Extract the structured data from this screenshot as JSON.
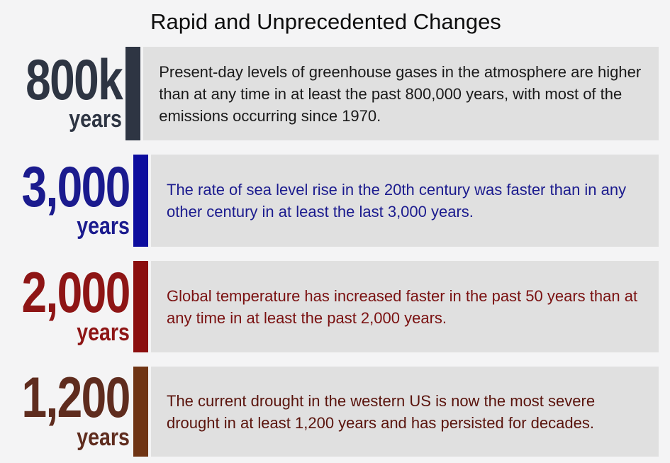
{
  "title": "Rapid and Unprecedented Changes",
  "background": "#f4f4f5",
  "box_background": "#e0e0e0",
  "rows": [
    {
      "value": "800k",
      "unit": "years",
      "number_color": "#2e3543",
      "bar_color": "#2e3543",
      "text_color": "#1a1a1a",
      "text": "Present-day levels of greenhouse gases in the atmosphere are higher than at any time in at least the past 800,000 years, with most of the emissions occurring since 1970."
    },
    {
      "value": "3,000",
      "unit": "years",
      "number_color": "#1b1b8e",
      "bar_color": "#0d0d9e",
      "text_color": "#1b1b8e",
      "text": "The rate of sea level rise in the 20th century was faster than in any other century in at least the last 3,000 years."
    },
    {
      "value": "2,000",
      "unit": "years",
      "number_color": "#8e1515",
      "bar_color": "#8b0e0e",
      "text_color": "#7a1111",
      "text": "Global temperature has increased faster in the past 50 years than at any time in at least the past 2,000 years."
    },
    {
      "value": "1,200",
      "unit": "years",
      "number_color": "#5f2c1e",
      "bar_color": "#6f3414",
      "text_color": "#5a140d",
      "text": "The current drought in the western US is now the most severe drought in at least 1,200 years and has persisted for decades."
    }
  ]
}
